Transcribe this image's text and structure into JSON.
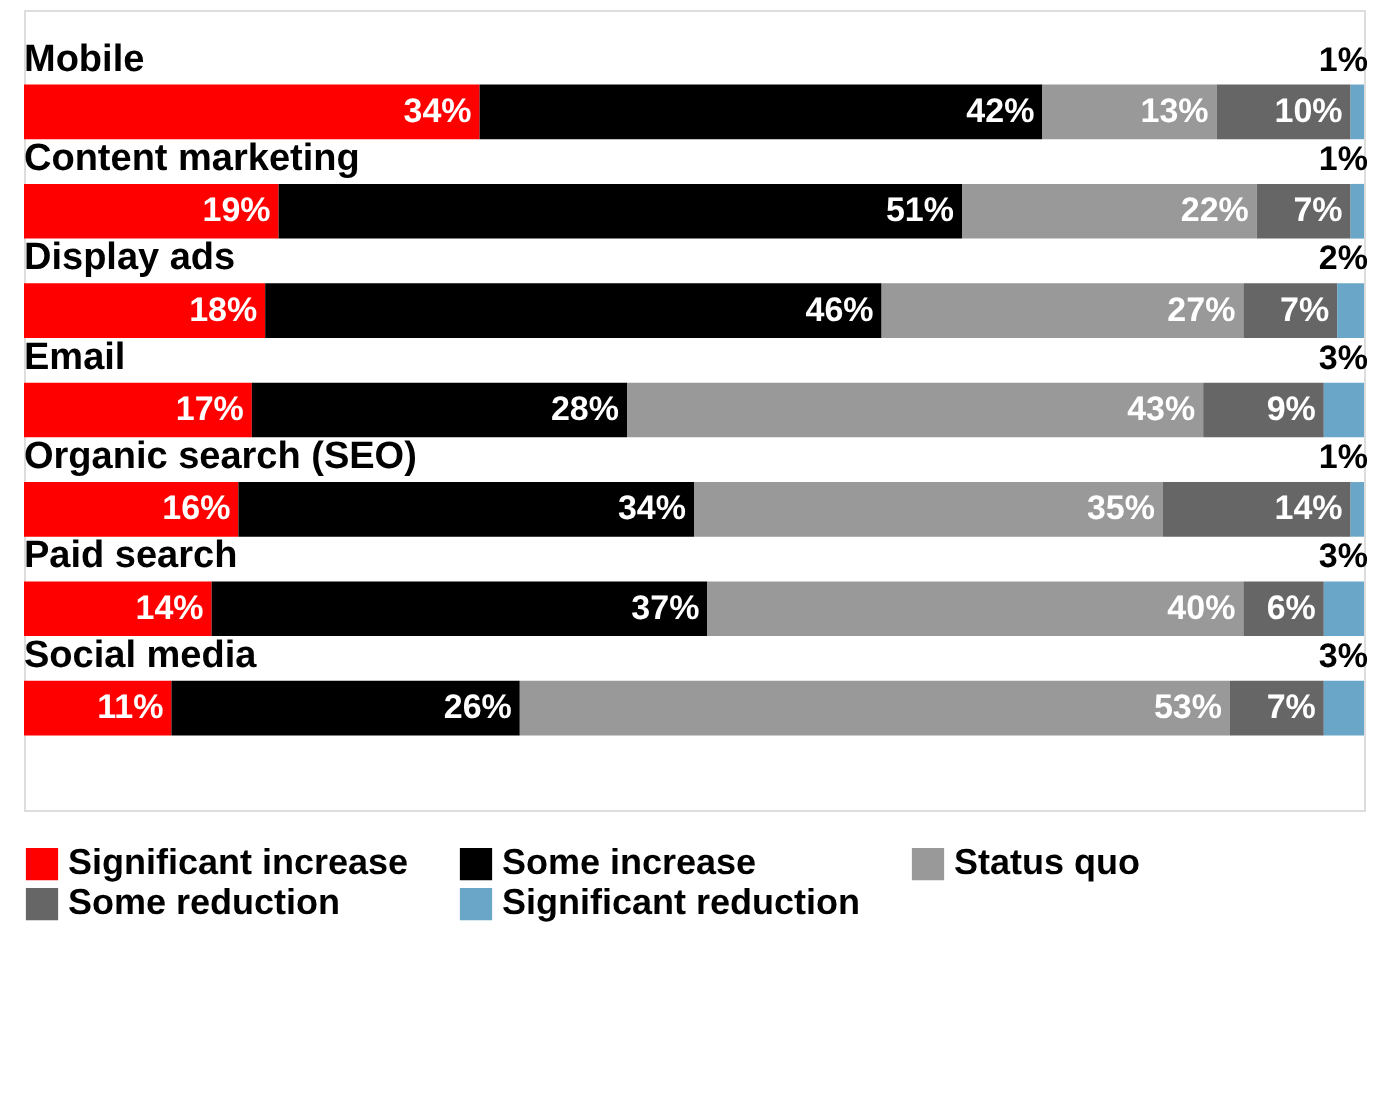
{
  "chart_data": {
    "type": "bar",
    "orientation": "horizontal",
    "stacked": true,
    "legend": "bottom",
    "grid": false,
    "categories": [
      "Mobile",
      "Content marketing",
      "Display ads",
      "Email",
      "Organic search (SEO)",
      "Paid search",
      "Social media"
    ],
    "series": [
      {
        "name": "Significant increase",
        "color": "#ff0000",
        "values": [
          34,
          19,
          18,
          17,
          16,
          14,
          11
        ],
        "value_labels": [
          "34%",
          "19%",
          "18%",
          "17%",
          "16%",
          "14%",
          "11%"
        ]
      },
      {
        "name": "Some increase",
        "color": "#000000",
        "values": [
          42,
          51,
          46,
          28,
          34,
          37,
          26
        ],
        "value_labels": [
          "42%",
          "51%",
          "46%",
          "28%",
          "34%",
          "37%",
          "26%"
        ]
      },
      {
        "name": "Status quo",
        "color": "#999999",
        "values": [
          13,
          22,
          27,
          43,
          35,
          40,
          53
        ],
        "value_labels": [
          "13%",
          "22%",
          "27%",
          "43%",
          "35%",
          "40%",
          "53%"
        ]
      },
      {
        "name": "Some reduction",
        "color": "#666666",
        "values": [
          10,
          7,
          7,
          9,
          14,
          6,
          7
        ],
        "value_labels": [
          "10%",
          "7%",
          "7%",
          "9%",
          "14%",
          "6%",
          "7%"
        ]
      },
      {
        "name": "Significant reduction",
        "color": "#6aa6c8",
        "values": [
          1,
          1,
          2,
          3,
          1,
          3,
          3
        ],
        "value_labels": [
          "1%",
          "1%",
          "2%",
          "3%",
          "1%",
          "3%",
          "3%"
        ]
      }
    ]
  }
}
